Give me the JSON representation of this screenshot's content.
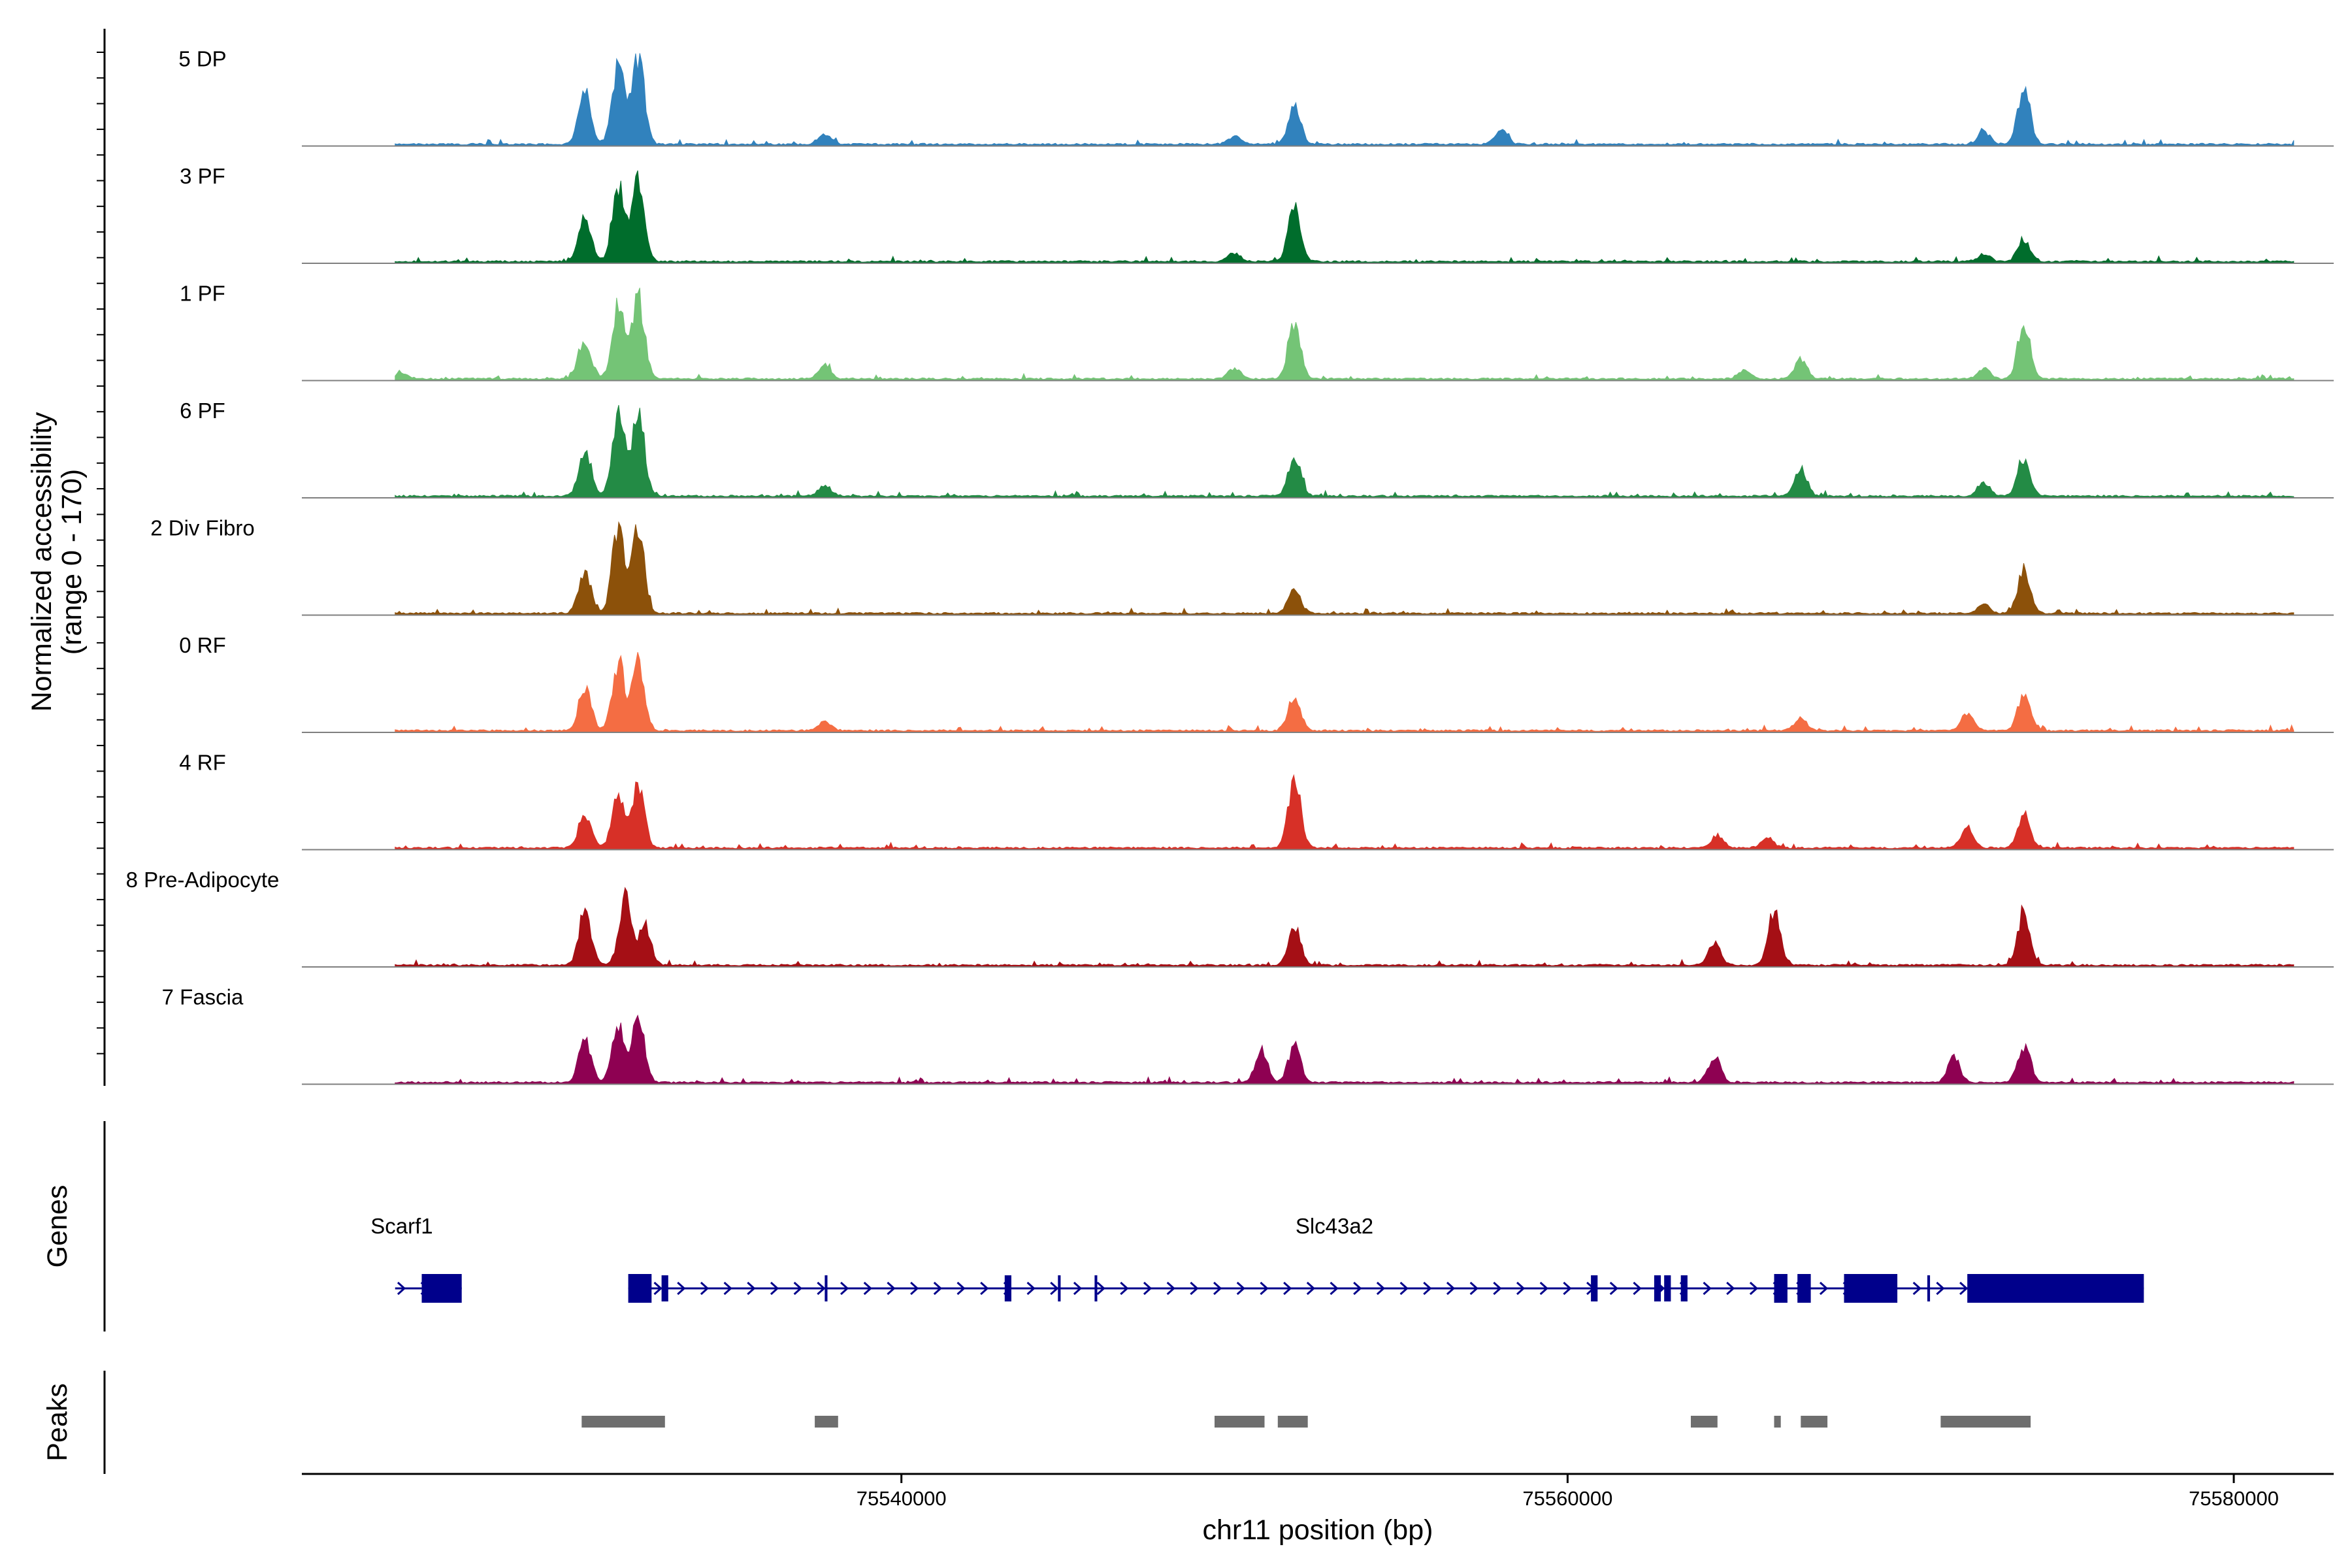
{
  "chart_data": {
    "type": "coverage",
    "title": "",
    "ylabel_line1": "Normalized accessibility",
    "ylabel_line2": "(range 0 - 170)",
    "xlabel": "chr11 position (bp)",
    "xlim": [
      75522000,
      75583000
    ],
    "x_ticks": [
      {
        "value": 75540000,
        "label": "75540000"
      },
      {
        "value": 75560000,
        "label": "75560000"
      },
      {
        "value": 75580000,
        "label": "75580000"
      }
    ],
    "y_range": [
      0,
      170
    ],
    "tracks": [
      {
        "name": "5 DP",
        "color": "#3182bd",
        "peaks": [
          [
            75530500,
            0.62
          ],
          [
            75531500,
            0.93
          ],
          [
            75532100,
            1.0
          ],
          [
            75537700,
            0.13
          ],
          [
            75550000,
            0.1
          ],
          [
            75551800,
            0.46
          ],
          [
            75558000,
            0.17
          ],
          [
            75573700,
            0.66
          ],
          [
            75572500,
            0.15
          ]
        ]
      },
      {
        "name": "3 PF",
        "color": "#006d2c",
        "peaks": [
          [
            75530500,
            0.5
          ],
          [
            75531500,
            0.88
          ],
          [
            75532100,
            1.0
          ],
          [
            75550000,
            0.1
          ],
          [
            75551800,
            0.62
          ],
          [
            75572500,
            0.08
          ],
          [
            75573700,
            0.26
          ]
        ]
      },
      {
        "name": "1 PF",
        "color": "#74c476",
        "peaks": [
          [
            75525000,
            0.07
          ],
          [
            75530500,
            0.45
          ],
          [
            75531500,
            0.88
          ],
          [
            75532100,
            0.94
          ],
          [
            75537700,
            0.15
          ],
          [
            75550000,
            0.12
          ],
          [
            75551800,
            0.68
          ],
          [
            75565300,
            0.1
          ],
          [
            75567000,
            0.22
          ],
          [
            75572500,
            0.12
          ],
          [
            75573700,
            0.66
          ]
        ]
      },
      {
        "name": "6 PF",
        "color": "#238b45",
        "peaks": [
          [
            75530500,
            0.53
          ],
          [
            75531500,
            1.0
          ],
          [
            75532100,
            0.96
          ],
          [
            75537700,
            0.12
          ],
          [
            75551800,
            0.48
          ],
          [
            75567000,
            0.32
          ],
          [
            75572500,
            0.16
          ],
          [
            75573700,
            0.45
          ]
        ]
      },
      {
        "name": "2 Div Fibro",
        "color": "#8c510a",
        "peaks": [
          [
            75530500,
            0.5
          ],
          [
            75531500,
            1.0
          ],
          [
            75532100,
            0.96
          ],
          [
            75551800,
            0.28
          ],
          [
            75572500,
            0.11
          ],
          [
            75573700,
            0.52
          ]
        ]
      },
      {
        "name": "0 RF",
        "color": "#f46d43",
        "peaks": [
          [
            75530500,
            0.52
          ],
          [
            75531500,
            0.78
          ],
          [
            75532100,
            0.8
          ],
          [
            75537700,
            0.1
          ],
          [
            75551800,
            0.4
          ],
          [
            75567000,
            0.14
          ],
          [
            75572000,
            0.2
          ],
          [
            75573700,
            0.44
          ]
        ]
      },
      {
        "name": "4 RF",
        "color": "#d73027",
        "peaks": [
          [
            75530500,
            0.4
          ],
          [
            75531500,
            0.6
          ],
          [
            75532100,
            0.72
          ],
          [
            75551800,
            0.8
          ],
          [
            75564500,
            0.13
          ],
          [
            75566000,
            0.12
          ],
          [
            75572000,
            0.25
          ],
          [
            75573700,
            0.38
          ]
        ]
      },
      {
        "name": "8 Pre-Adipocyte",
        "color": "#a50f15",
        "peaks": [
          [
            75530500,
            0.65
          ],
          [
            75531700,
            0.78
          ],
          [
            75532300,
            0.45
          ],
          [
            75551800,
            0.46
          ],
          [
            75564400,
            0.26
          ],
          [
            75566200,
            0.6
          ],
          [
            75573700,
            0.63
          ]
        ]
      },
      {
        "name": "7 Fascia",
        "color": "#8e0152",
        "peaks": [
          [
            75530500,
            0.5
          ],
          [
            75531500,
            0.62
          ],
          [
            75532100,
            0.75
          ],
          [
            75550800,
            0.38
          ],
          [
            75551800,
            0.42
          ],
          [
            75564400,
            0.3
          ],
          [
            75571600,
            0.28
          ],
          [
            75573700,
            0.42
          ]
        ]
      }
    ],
    "genes_label": "Genes",
    "genes": [
      {
        "name": "Scarf1",
        "label_pos": 75525000,
        "start": 75524800,
        "end": 75526800,
        "exons": [
          [
            75525600,
            75526800
          ]
        ]
      },
      {
        "name": "Slc43a2",
        "label_pos": 75553000,
        "start": 75531800,
        "end": 75577300,
        "exons": [
          [
            75531800,
            75532500
          ],
          [
            75532800,
            75533000
          ],
          [
            75537700,
            75537780
          ],
          [
            75543100,
            75543300
          ],
          [
            75544700,
            75544780
          ],
          [
            75545800,
            75545880
          ],
          [
            75560700,
            75560900
          ],
          [
            75562600,
            75562800
          ],
          [
            75562900,
            75563100
          ],
          [
            75563400,
            75563600
          ],
          [
            75566200,
            75566600
          ],
          [
            75566900,
            75567300
          ],
          [
            75568300,
            75569900
          ],
          [
            75570800,
            75570880
          ],
          [
            75572000,
            75577300
          ]
        ],
        "cds": [
          [
            75572000,
            75577300
          ],
          [
            75568300,
            75569900
          ]
        ]
      }
    ],
    "gene_color": "#00008b",
    "peaks_label": "Peaks",
    "peak_color": "#6e6e6e",
    "peak_regions": [
      [
        75530400,
        75532900
      ],
      [
        75537400,
        75538100
      ],
      [
        75549400,
        75550900
      ],
      [
        75551300,
        75552200
      ],
      [
        75563700,
        75564500
      ],
      [
        75566200,
        75566400
      ],
      [
        75567000,
        75567800
      ],
      [
        75571200,
        75573900
      ]
    ]
  }
}
